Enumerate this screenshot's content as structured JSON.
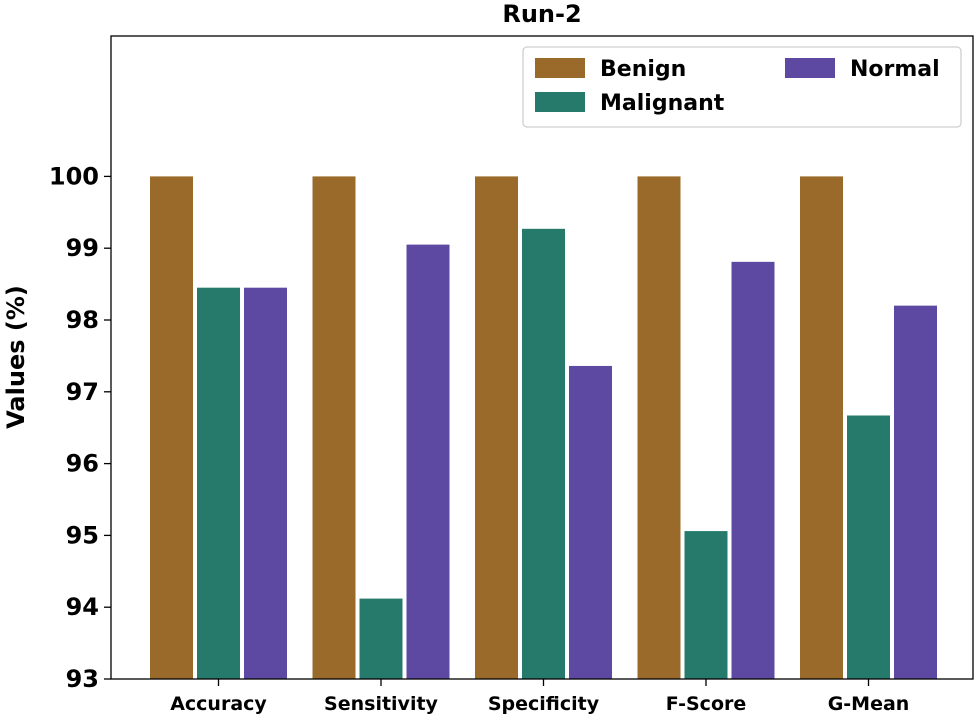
{
  "chart_data": {
    "type": "bar",
    "title": "Run-2",
    "xlabel": "",
    "ylabel": "Values (%)",
    "ylim": [
      93,
      101
    ],
    "yticks": [
      93,
      94,
      95,
      96,
      97,
      98,
      99,
      100
    ],
    "categories": [
      "Accuracy",
      "Sensitivity",
      "Specificity",
      "F-Score",
      "G-Mean"
    ],
    "series": [
      {
        "name": "Benign",
        "color": "#9a6a2b",
        "values": [
          100,
          100,
          100,
          100,
          100
        ]
      },
      {
        "name": "Malignant",
        "color": "#257a6b",
        "values": [
          98.45,
          94.12,
          99.27,
          95.06,
          96.67
        ]
      },
      {
        "name": "Normal",
        "color": "#5d49a1",
        "values": [
          98.45,
          99.05,
          97.36,
          98.81,
          98.2
        ]
      }
    ],
    "legend": {
      "position": "top-right",
      "columns": 2
    },
    "grid": false
  }
}
